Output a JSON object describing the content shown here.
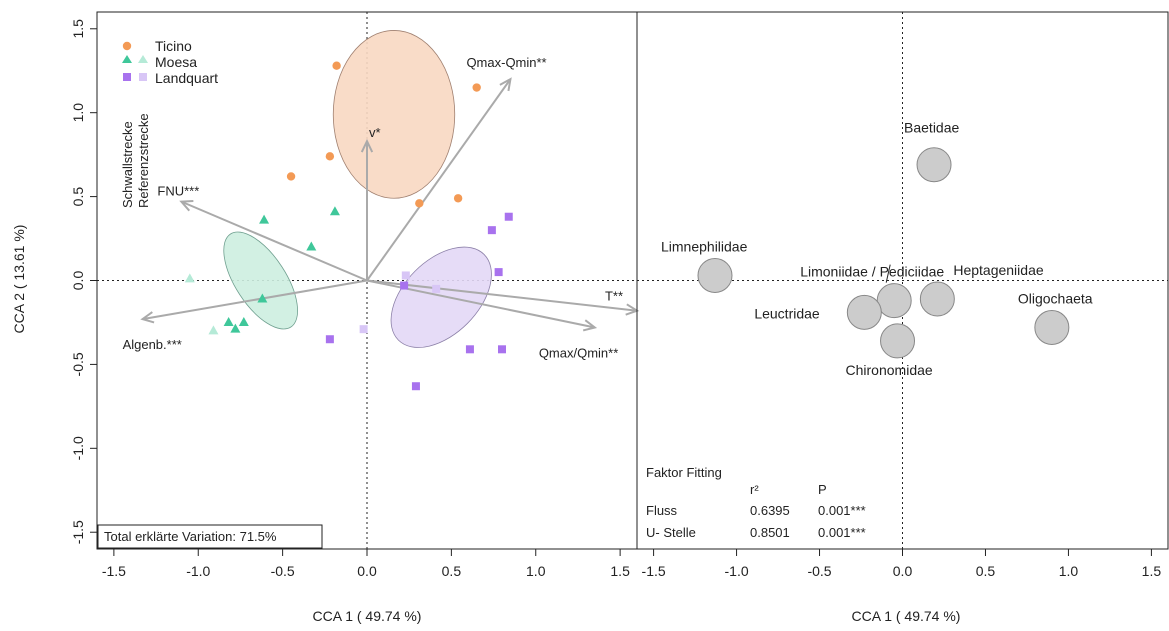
{
  "chart_data": [
    {
      "type": "scatter",
      "panel": "sites-and-environment",
      "xlabel": "CCA 1 ( 49.74 %)",
      "ylabel": "CCA 2 ( 13.61 %)",
      "xlim": [
        -1.6,
        1.6
      ],
      "ylim": [
        -1.6,
        1.6
      ],
      "x_ticks": [
        "-1.5",
        "-1.0",
        "-0.5",
        "0.0",
        "0.5",
        "1.0",
        "1.5"
      ],
      "y_ticks": [
        "-1.5",
        "-1.0",
        "-0.5",
        "0.0",
        "0.5",
        "1.0",
        "1.5"
      ],
      "legend": {
        "placement": "top-left",
        "entries": [
          "Ticino",
          "Moesa",
          "Landquart"
        ],
        "column_titles": [
          "Schwallstrecke",
          "Referenzstrecke"
        ]
      },
      "series": [
        {
          "name": "Ticino",
          "color": "#f39a55",
          "shape": "circle",
          "points": [
            {
              "x": -0.18,
              "y": 1.28
            },
            {
              "x": 0.65,
              "y": 1.15
            },
            {
              "x": -0.22,
              "y": 0.74
            },
            {
              "x": -0.45,
              "y": 0.62
            },
            {
              "x": 0.31,
              "y": 0.46
            },
            {
              "x": 0.54,
              "y": 0.49
            }
          ]
        },
        {
          "name": "Moesa",
          "color": "#3fc79a",
          "light_color": "#b5ead7",
          "shape": "triangle",
          "points": [
            {
              "x": -0.61,
              "y": 0.36
            },
            {
              "x": -0.19,
              "y": 0.41
            },
            {
              "x": -0.33,
              "y": 0.2
            },
            {
              "x": -0.62,
              "y": -0.11
            },
            {
              "x": -0.73,
              "y": -0.25
            },
            {
              "x": -0.78,
              "y": -0.29
            },
            {
              "x": -0.82,
              "y": -0.25
            },
            {
              "x": -1.05,
              "y": 0.01,
              "light": true
            },
            {
              "x": -0.91,
              "y": -0.3,
              "light": true
            }
          ]
        },
        {
          "name": "Landquart",
          "color": "#a872ee",
          "light_color": "#d8c6f6",
          "shape": "square",
          "points": [
            {
              "x": 0.84,
              "y": 0.38
            },
            {
              "x": 0.74,
              "y": 0.3
            },
            {
              "x": 0.78,
              "y": 0.05
            },
            {
              "x": 0.22,
              "y": -0.03
            },
            {
              "x": 0.23,
              "y": 0.03,
              "light": true
            },
            {
              "x": 0.41,
              "y": -0.05,
              "light": true
            },
            {
              "x": -0.02,
              "y": -0.29,
              "light": true
            },
            {
              "x": -0.22,
              "y": -0.35
            },
            {
              "x": 0.61,
              "y": -0.41
            },
            {
              "x": 0.8,
              "y": -0.41
            },
            {
              "x": 0.29,
              "y": -0.63
            }
          ]
        }
      ],
      "ellipses": [
        {
          "series": "Ticino",
          "color": "#f8d8c2",
          "stroke": "#a08070",
          "cx": 0.16,
          "cy": 0.99,
          "rx": 0.36,
          "ry": 0.5,
          "angle": 0
        },
        {
          "series": "Moesa",
          "color": "#cdeee0",
          "stroke": "#70a090",
          "cx": -0.63,
          "cy": 0.0,
          "rx": 0.15,
          "ry": 0.33,
          "angle": 33
        },
        {
          "series": "Landquart",
          "color": "#e3d8f6",
          "stroke": "#8c80a8",
          "cx": 0.44,
          "cy": -0.1,
          "rx": 0.36,
          "ry": 0.22,
          "angle": 45
        }
      ],
      "vectors": [
        {
          "label": "Qmax-Qmin**",
          "x": 0.85,
          "y": 1.2
        },
        {
          "label": "v*",
          "x": 0.0,
          "y": 0.83
        },
        {
          "label": "FNU***",
          "x": -1.1,
          "y": 0.47
        },
        {
          "label": "Algenb.***",
          "x": -1.33,
          "y": -0.23
        },
        {
          "label": "T**",
          "x": 1.6,
          "y": -0.18
        },
        {
          "label": "Qmax/Qmin**",
          "x": 1.35,
          "y": -0.28
        }
      ],
      "annotations": [
        "Total erklärte Variation: 71.5%"
      ]
    },
    {
      "type": "scatter",
      "panel": "taxa",
      "xlabel": "CCA 1 ( 49.74 %)",
      "xlim": [
        -1.6,
        1.6
      ],
      "ylim": [
        -1.6,
        1.6
      ],
      "x_ticks": [
        "-1.5",
        "-1.0",
        "-0.5",
        "0.0",
        "0.5",
        "1.0",
        "1.5"
      ],
      "color": "#cccccc",
      "points": [
        {
          "label": "Baetidae",
          "x": 0.19,
          "y": 0.69
        },
        {
          "label": "Limnephilidae",
          "x": -1.13,
          "y": 0.03
        },
        {
          "label": "Limoniidae / Pediciidae",
          "x": -0.05,
          "y": -0.12
        },
        {
          "label": "Heptageniidae",
          "x": 0.21,
          "y": -0.11
        },
        {
          "label": "Leuctridae",
          "x": -0.23,
          "y": -0.19
        },
        {
          "label": "Chironomidae",
          "x": -0.03,
          "y": -0.36
        },
        {
          "label": "Oligochaeta",
          "x": 0.9,
          "y": -0.28
        }
      ],
      "table": {
        "title": "Faktor Fitting",
        "headers": [
          "",
          "r²",
          "P"
        ],
        "rows": [
          [
            "Fluss",
            "0.6395",
            "0.001***"
          ],
          [
            "U- Stelle",
            "0.8501",
            "0.001***"
          ]
        ]
      }
    }
  ]
}
